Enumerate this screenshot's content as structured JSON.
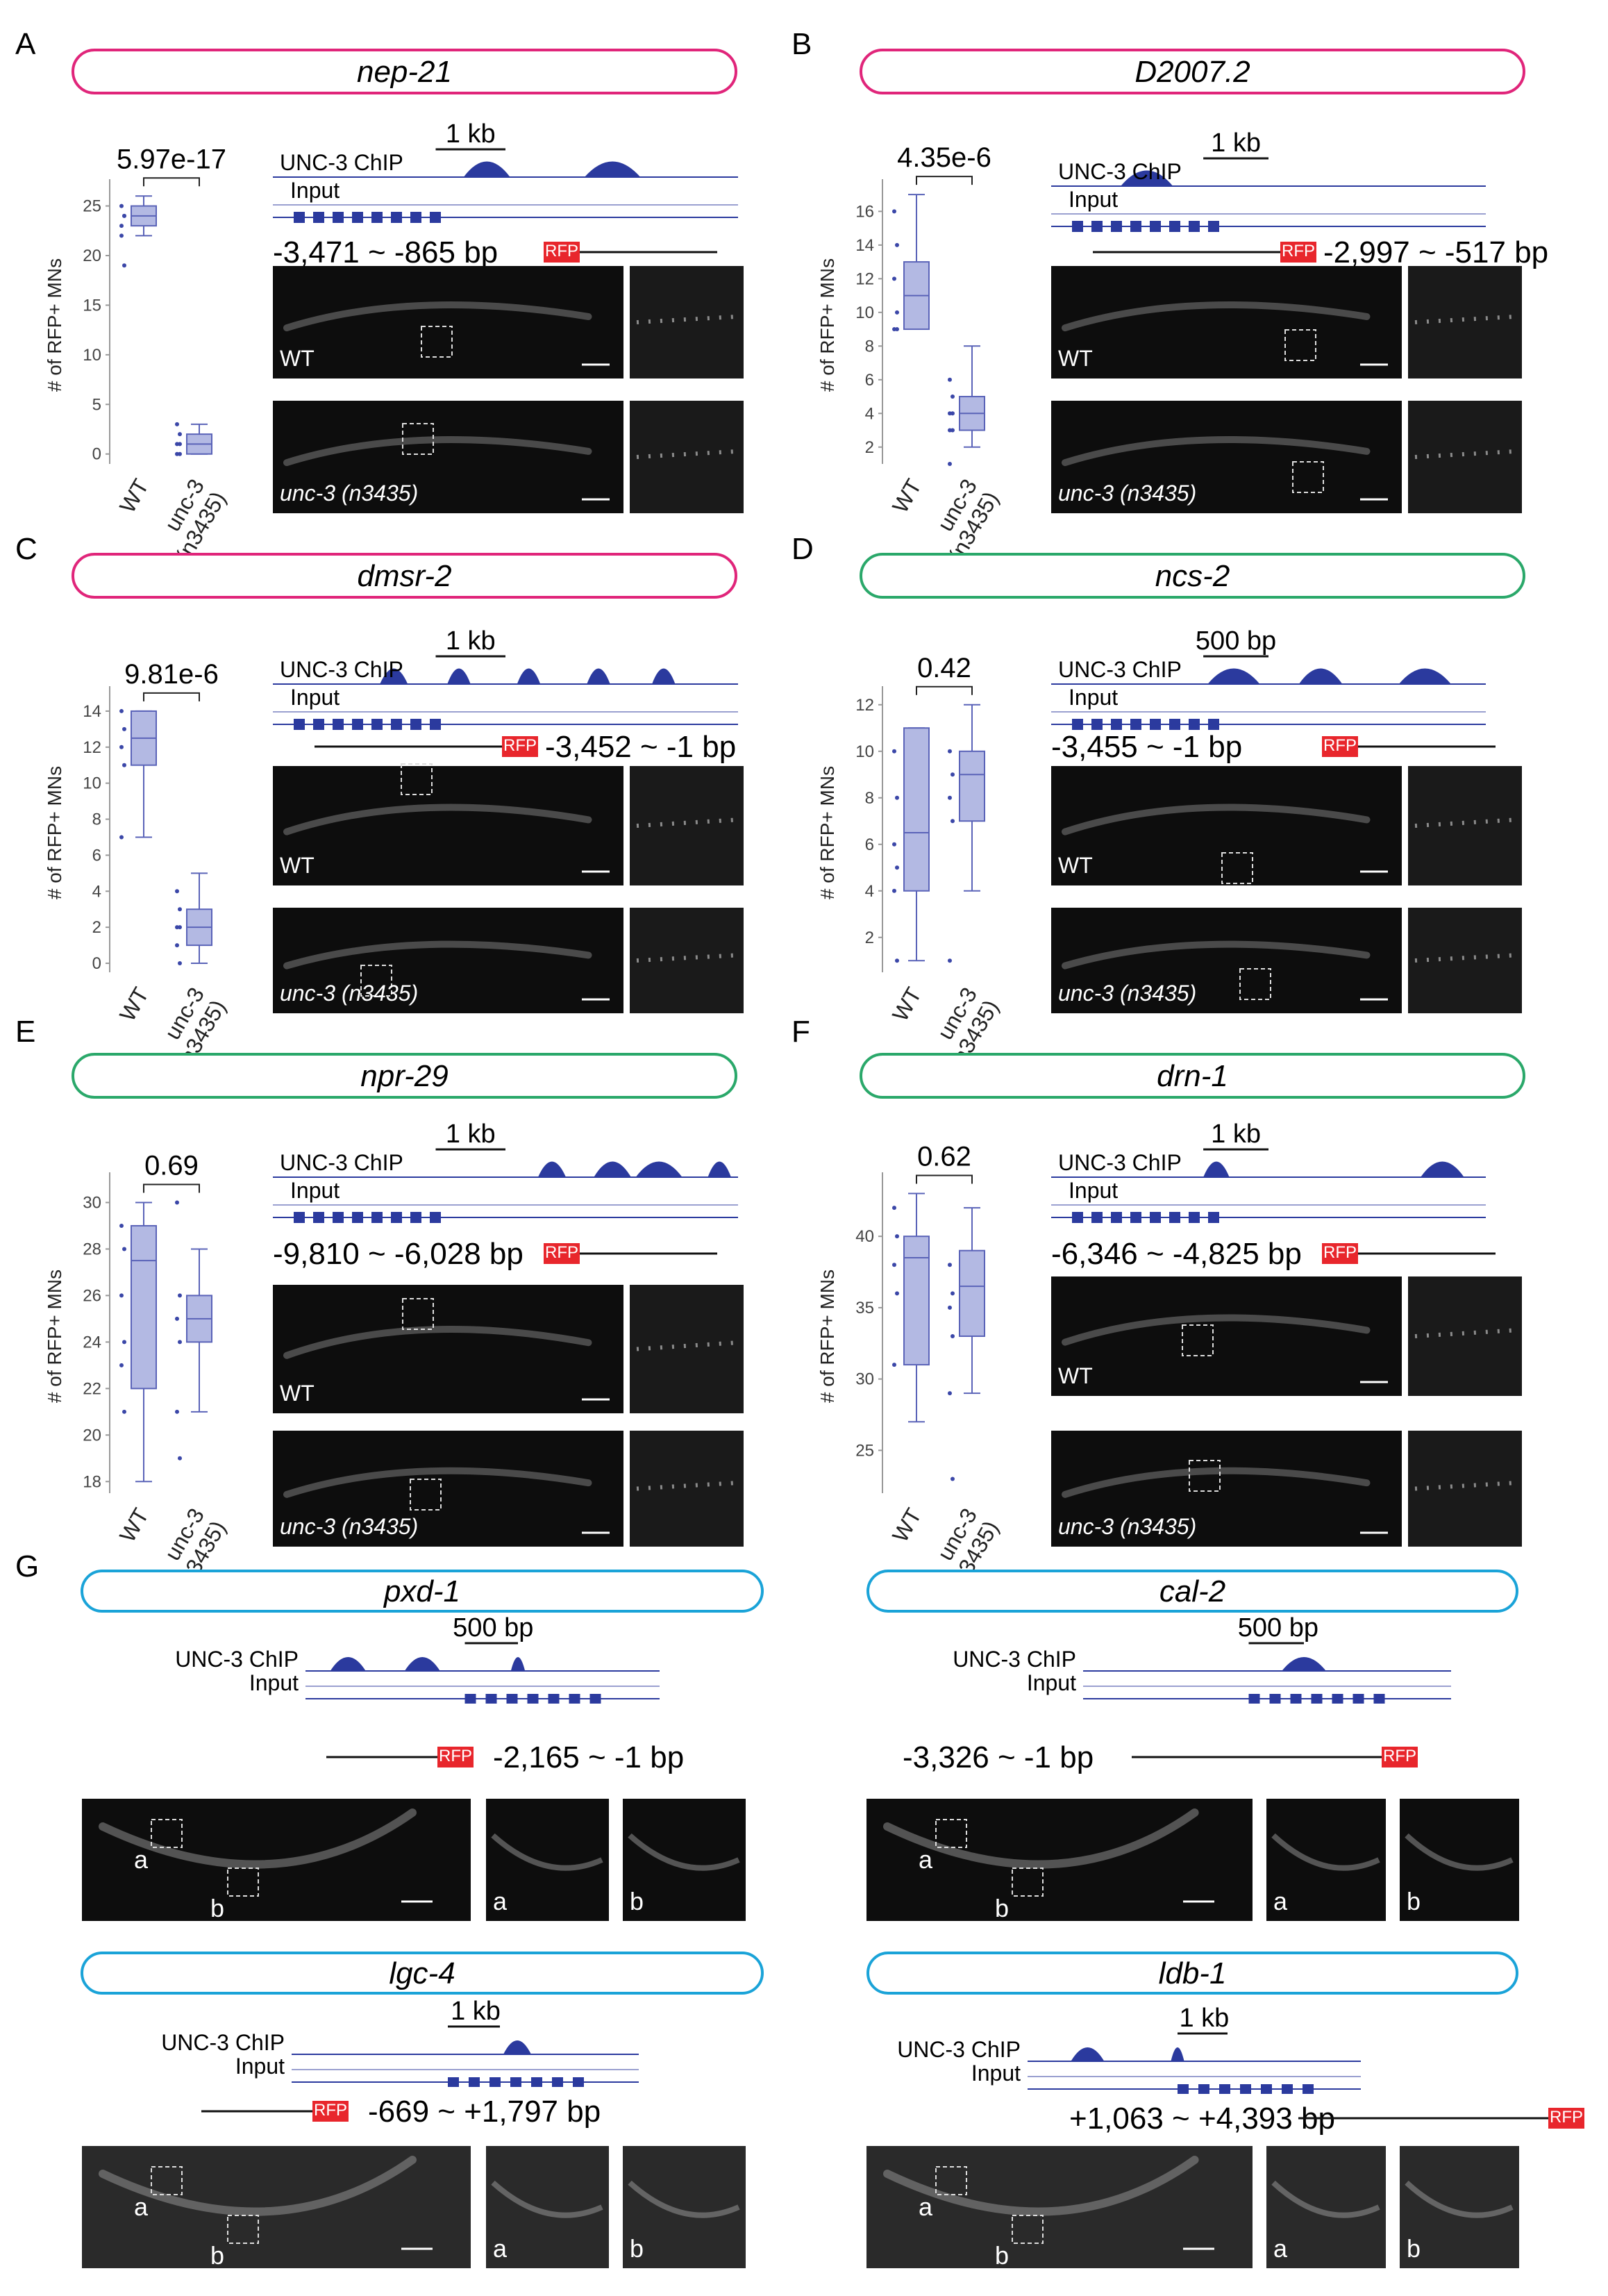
{
  "chart_data": [
    {
      "panel": "A",
      "gene": "nep-21",
      "type": "box",
      "ylabel": "# of RFP+ MNs",
      "ylim": [
        -1,
        27
      ],
      "yticks": [
        0,
        5,
        10,
        15,
        20,
        25
      ],
      "categories": [
        "WT",
        "unc-3\n(n3435)"
      ],
      "boxes": [
        {
          "min": 22,
          "q1": 23,
          "median": 24,
          "q3": 25,
          "max": 26,
          "points": [
            25,
            24,
            23,
            24,
            22,
            19
          ]
        },
        {
          "min": 0,
          "q1": 0,
          "median": 1,
          "q3": 2,
          "max": 3,
          "points": [
            3,
            2,
            1,
            1,
            0,
            0
          ]
        }
      ],
      "pvalue": "5.97e-17",
      "scalebar": "1 kb",
      "range": "-3,471 ~ -865 bp",
      "promoter_side": "left",
      "genotypes": [
        "WT",
        "unc-3 (n3435)"
      ],
      "tracks": [
        "UNC-3 ChIP",
        "Input"
      ],
      "reporter": "RFP",
      "peaks": [
        [
          0.46,
          0.05
        ],
        [
          0.73,
          0.06
        ]
      ]
    },
    {
      "panel": "B",
      "gene": "D2007.2",
      "type": "box",
      "ylabel": "# of RFP+ MNs",
      "ylim": [
        1,
        17.5
      ],
      "yticks": [
        2,
        4,
        6,
        8,
        10,
        12,
        14,
        16
      ],
      "categories": [
        "WT",
        "unc-3\n(n3435)"
      ],
      "boxes": [
        {
          "min": 9,
          "q1": 9,
          "median": 11,
          "q3": 13,
          "max": 17,
          "points": [
            16,
            14,
            12,
            10,
            9,
            9
          ]
        },
        {
          "min": 2,
          "q1": 3,
          "median": 4,
          "q3": 5,
          "max": 8,
          "points": [
            6,
            5,
            4,
            4,
            3,
            3,
            1
          ]
        }
      ],
      "pvalue": "4.35e-6",
      "scalebar": "1 kb",
      "range": "-2,997 ~ -517 bp",
      "promoter_side": "right",
      "genotypes": [
        "WT",
        "unc-3 (n3435)"
      ],
      "tracks": [
        "UNC-3 ChIP",
        "Input"
      ],
      "reporter": "RFP",
      "peaks": [
        [
          0.22,
          0.06
        ]
      ]
    },
    {
      "panel": "C",
      "gene": "dmsr-2",
      "type": "box",
      "ylabel": "# of RFP+ MNs",
      "ylim": [
        -0.5,
        15
      ],
      "yticks": [
        0,
        2,
        4,
        6,
        8,
        10,
        12,
        14
      ],
      "categories": [
        "WT",
        "unc-3\n(n3435)"
      ],
      "boxes": [
        {
          "min": 7,
          "q1": 11,
          "median": 12.5,
          "q3": 14,
          "max": 14,
          "points": [
            14,
            13,
            12,
            11,
            7
          ]
        },
        {
          "min": 0,
          "q1": 1,
          "median": 2,
          "q3": 3,
          "max": 5,
          "points": [
            4,
            3,
            2,
            2,
            1,
            0
          ]
        }
      ],
      "pvalue": "9.81e-6",
      "scalebar": "1 kb",
      "range": "-3,452 ~ -1 bp",
      "promoter_side": "right",
      "genotypes": [
        "WT",
        "unc-3 (n3435)"
      ],
      "tracks": [
        "UNC-3 ChIP",
        "Input"
      ],
      "reporter": "RFP",
      "peaks": [
        [
          0.26,
          0.03
        ],
        [
          0.4,
          0.025
        ],
        [
          0.55,
          0.025
        ],
        [
          0.7,
          0.025
        ],
        [
          0.84,
          0.025
        ]
      ]
    },
    {
      "panel": "D",
      "gene": "ncs-2",
      "type": "box",
      "ylabel": "# of RFP+ MNs",
      "ylim": [
        0.5,
        12.5
      ],
      "yticks": [
        2,
        4,
        6,
        8,
        10,
        12
      ],
      "categories": [
        "WT",
        "unc-3\n(n3435)"
      ],
      "boxes": [
        {
          "min": 1,
          "q1": 4,
          "median": 6.5,
          "q3": 11,
          "max": 11,
          "points": [
            10,
            8,
            6,
            5,
            4,
            1
          ]
        },
        {
          "min": 4,
          "q1": 7,
          "median": 9,
          "q3": 10,
          "max": 12,
          "points": [
            10,
            9,
            8,
            7,
            1
          ]
        }
      ],
      "pvalue": "0.42",
      "scalebar": "500 bp",
      "range": "-3,455 ~ -1 bp",
      "promoter_side": "left",
      "genotypes": [
        "WT",
        "unc-3 (n3435)"
      ],
      "tracks": [
        "UNC-3 ChIP",
        "Input"
      ],
      "reporter": "RFP",
      "peaks": [
        [
          0.42,
          0.06
        ],
        [
          0.62,
          0.05
        ],
        [
          0.86,
          0.06
        ]
      ]
    },
    {
      "panel": "E",
      "gene": "npr-29",
      "type": "box",
      "ylabel": "# of RFP+ MNs",
      "ylim": [
        17.5,
        31
      ],
      "yticks": [
        18,
        20,
        22,
        24,
        26,
        28,
        30
      ],
      "categories": [
        "WT",
        "unc-3\n(n3435)"
      ],
      "boxes": [
        {
          "min": 18,
          "q1": 22,
          "median": 27.5,
          "q3": 29,
          "max": 30,
          "points": [
            29,
            28,
            26,
            24,
            23,
            21
          ]
        },
        {
          "min": 21,
          "q1": 24,
          "median": 25,
          "q3": 26,
          "max": 28,
          "points": [
            30,
            26,
            25,
            24,
            21,
            19
          ]
        }
      ],
      "pvalue": "0.69",
      "scalebar": "1 kb",
      "range": "-9,810 ~ -6,028 bp",
      "promoter_side": "left",
      "genotypes": [
        "WT",
        "unc-3 (n3435)"
      ],
      "tracks": [
        "UNC-3 ChIP",
        "Input"
      ],
      "reporter": "RFP",
      "peaks": [
        [
          0.6,
          0.03
        ],
        [
          0.73,
          0.04
        ],
        [
          0.83,
          0.05
        ],
        [
          0.96,
          0.025
        ]
      ]
    },
    {
      "panel": "F",
      "gene": "drn-1",
      "type": "box",
      "ylabel": "# of RFP+ MNs",
      "ylim": [
        22,
        44
      ],
      "yticks": [
        25,
        30,
        35,
        40
      ],
      "categories": [
        "WT",
        "unc-3\n(n3435)"
      ],
      "boxes": [
        {
          "min": 27,
          "q1": 31,
          "median": 38.5,
          "q3": 40,
          "max": 43,
          "points": [
            42,
            40,
            38,
            36,
            31
          ]
        },
        {
          "min": 29,
          "q1": 33,
          "median": 36.5,
          "q3": 39,
          "max": 42,
          "points": [
            38,
            36,
            35,
            33,
            29,
            23
          ]
        }
      ],
      "pvalue": "0.62",
      "scalebar": "1 kb",
      "range": "-6,346 ~ -4,825 bp",
      "promoter_side": "left",
      "genotypes": [
        "WT",
        "unc-3 (n3435)"
      ],
      "tracks": [
        "UNC-3 ChIP",
        "Input"
      ],
      "reporter": "RFP",
      "peaks": [
        [
          0.38,
          0.03
        ],
        [
          0.9,
          0.05
        ]
      ]
    }
  ],
  "panel_g": {
    "letter": "G",
    "items": [
      {
        "gene": "pxd-1",
        "scalebar": "500 bp",
        "range": "-2,165 ~ -1 bp",
        "promoter_side": "left",
        "tracks": [
          "UNC-3 ChIP",
          "Input"
        ],
        "reporter": "RFP",
        "insets": [
          "a",
          "b"
        ],
        "peaks": [
          [
            0.12,
            0.05
          ],
          [
            0.33,
            0.05
          ],
          [
            0.6,
            0.02
          ]
        ]
      },
      {
        "gene": "cal-2",
        "scalebar": "500 bp",
        "range": "-3,326 ~ -1 bp",
        "promoter_side": "right",
        "tracks": [
          "UNC-3 ChIP",
          "Input"
        ],
        "reporter": "RFP",
        "insets": [
          "a",
          "b"
        ],
        "peaks": [
          [
            0.6,
            0.06
          ]
        ]
      },
      {
        "gene": "lgc-4",
        "scalebar": "1 kb",
        "range": "-669 ~ +1,797 bp",
        "promoter_side": "left",
        "tracks": [
          "UNC-3 ChIP",
          "Input"
        ],
        "reporter": "RFP",
        "insets": [
          "a",
          "b"
        ],
        "peaks": [
          [
            0.65,
            0.04
          ]
        ]
      },
      {
        "gene": "ldb-1",
        "scalebar": "1 kb",
        "range": "+1,063 ~ +4,393 bp",
        "promoter_side": "right",
        "tracks": [
          "UNC-3 ChIP",
          "Input"
        ],
        "reporter": "RFP",
        "insets": [
          "a",
          "b"
        ],
        "peaks": [
          [
            0.18,
            0.05
          ],
          [
            0.45,
            0.02
          ]
        ]
      }
    ]
  },
  "colors": {
    "panel_border_magenta": "#e0257a",
    "panel_border_green": "#2aa86a",
    "panel_border_cyan": "#1aa3d8",
    "box_fill": "#b3b9e3",
    "box_stroke": "#5a63b8",
    "point": "#3b47a8",
    "track": "#2b3a9e",
    "rfp": "#e8262c"
  }
}
